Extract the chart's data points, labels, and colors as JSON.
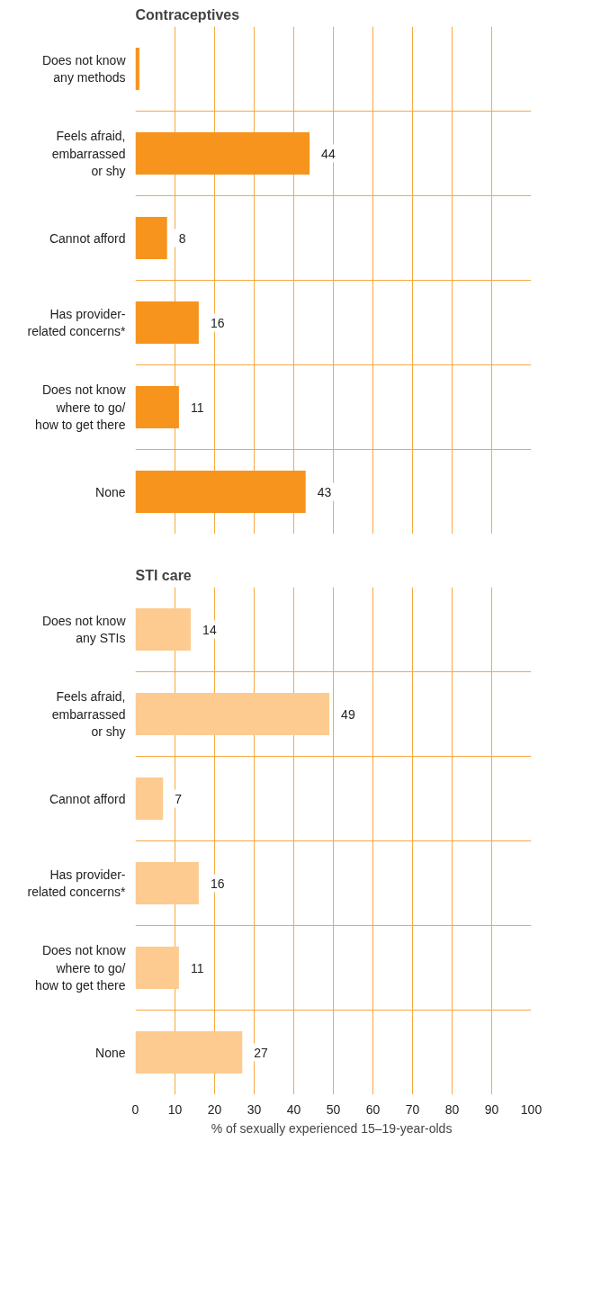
{
  "chart_data": [
    {
      "type": "bar",
      "orientation": "horizontal",
      "title": "Contraceptives",
      "categories": [
        "Does not know\nany methods",
        "Feels afraid,\nembarrassed\nor shy",
        "Cannot afford",
        "Has provider-\nrelated concerns*",
        "Does not know\nwhere to go/\nhow to get there",
        "None"
      ],
      "values": [
        1,
        44,
        8,
        16,
        11,
        43
      ],
      "value_labels": [
        null,
        "44",
        "8",
        "16",
        "11",
        "43"
      ],
      "color": "#f7941d",
      "xlim": [
        0,
        100
      ],
      "xticks": [
        0,
        10,
        20,
        30,
        40,
        50,
        60,
        70,
        80,
        90,
        100
      ],
      "grid": true,
      "tick_labels": "y"
    },
    {
      "type": "bar",
      "orientation": "horizontal",
      "title": "STI care",
      "categories": [
        "Does not know\nany STIs",
        "Feels afraid,\nembarrassed\nor shy",
        "Cannot afford",
        "Has provider-\nrelated concerns*",
        "Does not know\nwhere to go/\nhow to get there",
        "None"
      ],
      "values": [
        14,
        49,
        7,
        16,
        11,
        27
      ],
      "data_labels": true,
      "color": "#fdcb8f",
      "xlim": [
        0,
        100
      ],
      "xticks": [
        0,
        10,
        20,
        30,
        40,
        50,
        60,
        70,
        80,
        90,
        100
      ],
      "xlabel": "% of  sexually experienced 15–19-year-olds",
      "grid": true
    }
  ]
}
